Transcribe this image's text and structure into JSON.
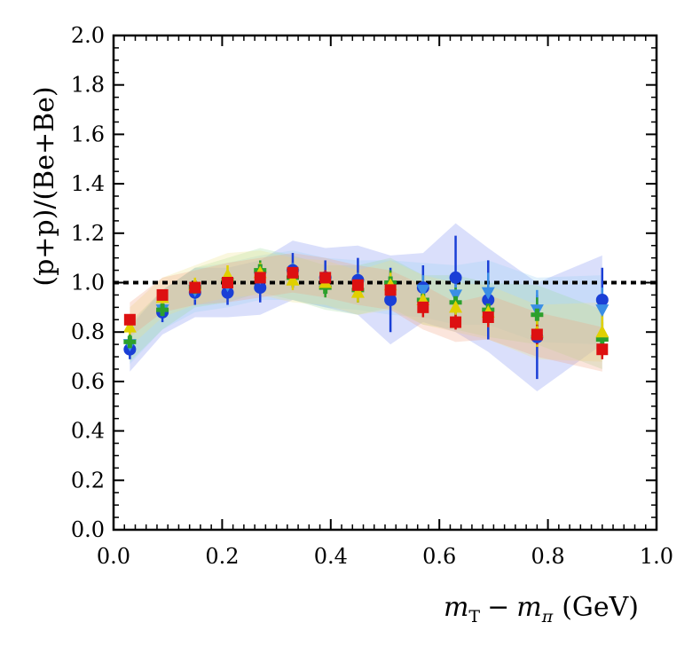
{
  "chart_data": {
    "type": "scatter",
    "title": "",
    "xlabel": "m_T − m_π (GeV)",
    "ylabel": "(p+p)/(Be+Be)",
    "xlim": [
      0.0,
      1.0
    ],
    "ylim": [
      0.0,
      2.0
    ],
    "x_ticks": [
      "0.0",
      "0.2",
      "0.4",
      "0.6",
      "0.8",
      "1.0"
    ],
    "y_ticks": [
      "0.0",
      "0.2",
      "0.4",
      "0.6",
      "0.8",
      "1.0",
      "1.2",
      "1.4",
      "1.6",
      "1.8",
      "2.0"
    ],
    "reference_line_y": 1.0,
    "x_title_parts": {
      "m": "m",
      "T": "T",
      "minus": "−",
      "pi": "π",
      "unit": "(GeV)"
    },
    "y_title_text": "(p+p)/(Be+Be)",
    "colors": {
      "blue": "#1a3fd6",
      "light_blue": "#3a8ee6",
      "green": "#2ca02c",
      "yellow": "#e0d000",
      "red": "#dd1111"
    },
    "series": [
      {
        "name": "blue-circles",
        "marker": "circle",
        "color": "#1a3fd6",
        "band_color": "#7b8cf0",
        "x": [
          0.03,
          0.09,
          0.15,
          0.21,
          0.27,
          0.33,
          0.39,
          0.45,
          0.51,
          0.57,
          0.63,
          0.69,
          0.78,
          0.9
        ],
        "y": [
          0.73,
          0.88,
          0.96,
          0.96,
          0.98,
          1.05,
          1.02,
          1.01,
          0.93,
          0.98,
          1.02,
          0.93,
          0.78,
          0.93
        ],
        "err": [
          0.04,
          0.04,
          0.05,
          0.05,
          0.06,
          0.07,
          0.07,
          0.09,
          0.13,
          0.09,
          0.17,
          0.16,
          0.17,
          0.13
        ]
      },
      {
        "name": "light-blue-down-triangles",
        "marker": "triangle-down",
        "color": "#3a8ee6",
        "band_color": "#9ad0f5",
        "x": [
          0.03,
          0.09,
          0.15,
          0.21,
          0.27,
          0.33,
          0.39,
          0.45,
          0.51,
          0.57,
          0.63,
          0.69,
          0.78,
          0.9
        ],
        "y": [
          0.75,
          0.89,
          0.97,
          0.99,
          1.02,
          1.03,
          1.0,
          0.99,
          0.98,
          0.97,
          0.95,
          0.96,
          0.89,
          0.89
        ],
        "err": [
          0.03,
          0.03,
          0.04,
          0.04,
          0.04,
          0.05,
          0.05,
          0.05,
          0.06,
          0.06,
          0.07,
          0.08,
          0.08,
          0.09
        ]
      },
      {
        "name": "green-plus",
        "marker": "plus",
        "color": "#2ca02c",
        "band_color": "#9fdc9f",
        "x": [
          0.03,
          0.09,
          0.15,
          0.21,
          0.27,
          0.33,
          0.39,
          0.45,
          0.51,
          0.57,
          0.63,
          0.69,
          0.78,
          0.9
        ],
        "y": [
          0.76,
          0.89,
          0.98,
          1.01,
          1.05,
          1.02,
          0.98,
          0.97,
          1.0,
          0.93,
          0.92,
          0.89,
          0.87,
          0.77
        ],
        "err": [
          0.03,
          0.03,
          0.03,
          0.04,
          0.04,
          0.04,
          0.04,
          0.05,
          0.05,
          0.05,
          0.06,
          0.06,
          0.07,
          0.07
        ]
      },
      {
        "name": "yellow-triangles",
        "marker": "triangle-up",
        "color": "#e0d000",
        "band_color": "#eee48a",
        "x": [
          0.03,
          0.09,
          0.15,
          0.21,
          0.27,
          0.33,
          0.39,
          0.45,
          0.51,
          0.57,
          0.63,
          0.69,
          0.78,
          0.9
        ],
        "y": [
          0.82,
          0.94,
          0.99,
          1.03,
          1.04,
          1.01,
          1.0,
          0.96,
          0.99,
          0.93,
          0.9,
          0.88,
          0.8,
          0.8
        ],
        "err": [
          0.03,
          0.03,
          0.03,
          0.04,
          0.04,
          0.04,
          0.04,
          0.04,
          0.05,
          0.05,
          0.05,
          0.06,
          0.06,
          0.07
        ]
      },
      {
        "name": "red-squares",
        "marker": "square",
        "color": "#dd1111",
        "band_color": "#f2a080",
        "x": [
          0.03,
          0.09,
          0.15,
          0.21,
          0.27,
          0.33,
          0.39,
          0.45,
          0.51,
          0.57,
          0.63,
          0.69,
          0.78,
          0.9
        ],
        "y": [
          0.85,
          0.95,
          0.98,
          1.0,
          1.02,
          1.04,
          1.02,
          0.99,
          0.97,
          0.9,
          0.84,
          0.86,
          0.79,
          0.73
        ],
        "err": [
          0.02,
          0.02,
          0.02,
          0.03,
          0.03,
          0.03,
          0.03,
          0.03,
          0.03,
          0.04,
          0.03,
          0.04,
          0.04,
          0.04
        ]
      }
    ]
  }
}
